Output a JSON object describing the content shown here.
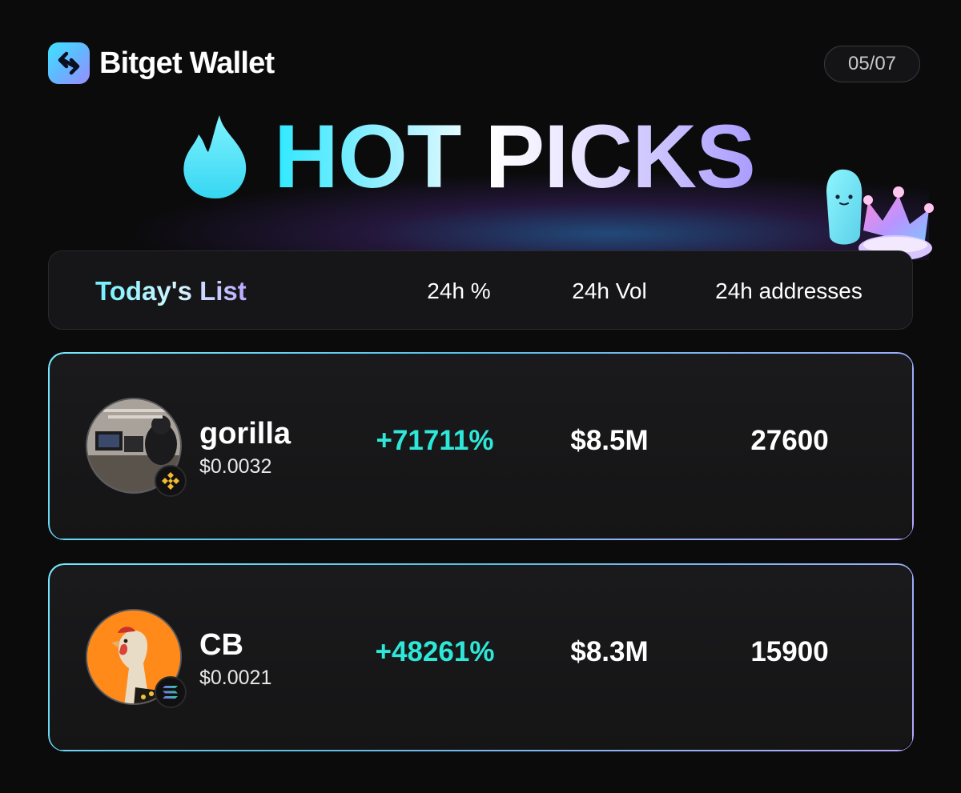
{
  "brand": {
    "name": "Bitget Wallet"
  },
  "date": "05/07",
  "title": "HOT PICKS",
  "list_header": {
    "title": "Today's List",
    "columns": [
      "24h %",
      "24h Vol",
      "24h addresses"
    ]
  },
  "tokens": [
    {
      "name": "gorilla",
      "price": "$0.0032",
      "change_24h": "+71711%",
      "vol_24h": "$8.5M",
      "addresses_24h": "27600",
      "chain": "bnb-chain-icon"
    },
    {
      "name": "CB",
      "price": "$0.0021",
      "change_24h": "+48261%",
      "vol_24h": "$8.3M",
      "addresses_24h": "15900",
      "chain": "solana-chain-icon"
    }
  ],
  "colors": {
    "accent_cyan": "#2ee7d8",
    "gradient_start": "#2ee8ff",
    "gradient_end": "#a99cff"
  }
}
